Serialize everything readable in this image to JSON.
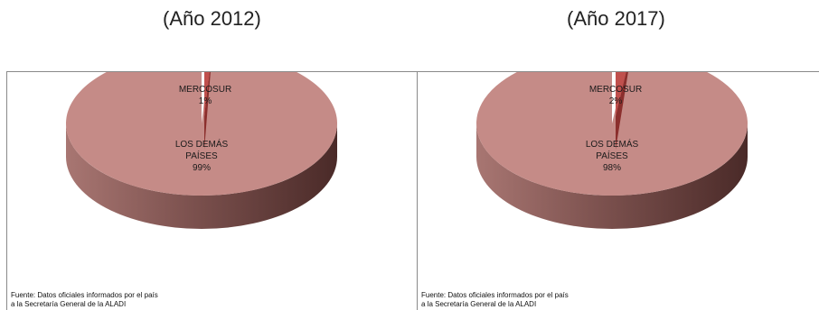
{
  "chart_data": [
    {
      "type": "pie",
      "title": "(Año 2012)",
      "slices": [
        {
          "label_lines": [
            "MERCOSUR"
          ],
          "value": 1,
          "value_label": "1%"
        },
        {
          "label_lines": [
            "LOS DEMÁS",
            "PAÍSES"
          ],
          "value": 99,
          "value_label": "99%"
        }
      ],
      "source_lines": [
        "Fuente: Datos oficiales informados por el país",
        "a la Secretaría General de la ALADI"
      ]
    },
    {
      "type": "pie",
      "title": "(Año 2017)",
      "slices": [
        {
          "label_lines": [
            "MERCOSUR"
          ],
          "value": 2,
          "value_label": "2%"
        },
        {
          "label_lines": [
            "LOS DEMÁS",
            "PAÍSES"
          ],
          "value": 98,
          "value_label": "98%"
        }
      ],
      "source_lines": [
        "Fuente: Datos oficiales informados por el país",
        "a la Secretaría General de la ALADI"
      ]
    }
  ],
  "colors": {
    "mercosur_top": "#c0504d",
    "mercosur_side": "#8b2f2d",
    "others_top": "#c58b87",
    "others_side_light": "#a87672",
    "others_side_dark": "#4a2a28"
  }
}
